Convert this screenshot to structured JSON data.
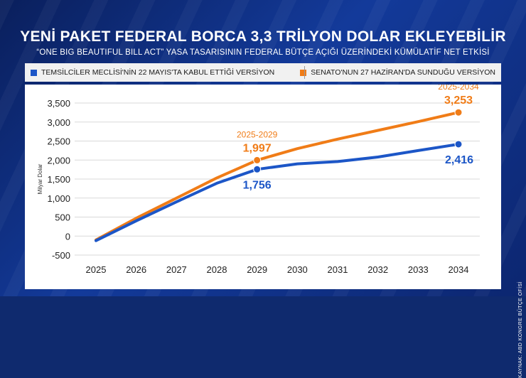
{
  "header": {
    "title": "YENİ PAKET FEDERAL BORCA 3,3 TRİLYON DOLAR EKLEYEBİLİR",
    "subtitle": "“ONE BIG BEAUTIFUL BILL ACT” YASA TASARISININ FEDERAL BÜTÇE AÇIĞI ÜZERİNDEKİ KÜMÜLATİF NET ETKİSİ"
  },
  "legend": {
    "items": [
      {
        "label": "TEMSİLCİLER MECLİSİ'NİN 22 MAYIS'TA KABUL ETTİĞİ VERSİYON",
        "color": "#1c56c7"
      },
      {
        "label": "SENATO'NUN 27 HAZİRAN'DA SUNDUĞU VERSİYON",
        "color": "#f07c17"
      }
    ]
  },
  "source": "KAYNAK: ABD KONGRE BÜTÇE OFİSİ",
  "chart_data": {
    "type": "line",
    "ylabel": "Milyar Dolar",
    "xlabel": "",
    "ylim": [
      -500,
      3500
    ],
    "yticks": [
      -500,
      0,
      500,
      1000,
      1500,
      2000,
      2500,
      3000,
      3500
    ],
    "ytick_labels": [
      "-500",
      "0",
      "500",
      "1,000",
      "1,500",
      "2,000",
      "2,500",
      "3,000",
      "3,500"
    ],
    "x": [
      "2025",
      "2026",
      "2027",
      "2028",
      "2029",
      "2030",
      "2031",
      "2032",
      "2033",
      "2034"
    ],
    "grid": true,
    "series": [
      {
        "name": "TEMSİLCİLER MECLİSİ'NİN 22 MAYIS'TA KABUL ETTİĞİ VERSİYON",
        "color": "#1c56c7",
        "values": [
          -120,
          400,
          900,
          1390,
          1756,
          1900,
          1960,
          2080,
          2250,
          2416
        ]
      },
      {
        "name": "SENATO'NUN 27 HAZİRAN'DA SUNDUĞU VERSİYON",
        "color": "#f07c17",
        "values": [
          -100,
          470,
          1000,
          1530,
          1997,
          2300,
          2550,
          2780,
          3010,
          3253
        ]
      }
    ],
    "annotations": [
      {
        "series": 1,
        "x": "2029",
        "period": "2025-2029",
        "value": "1,997"
      },
      {
        "series": 0,
        "x": "2029",
        "value": "1,756"
      },
      {
        "series": 1,
        "x": "2034",
        "period": "2025-2034",
        "value": "3,253"
      },
      {
        "series": 0,
        "x": "2034",
        "value": "2,416"
      }
    ]
  }
}
